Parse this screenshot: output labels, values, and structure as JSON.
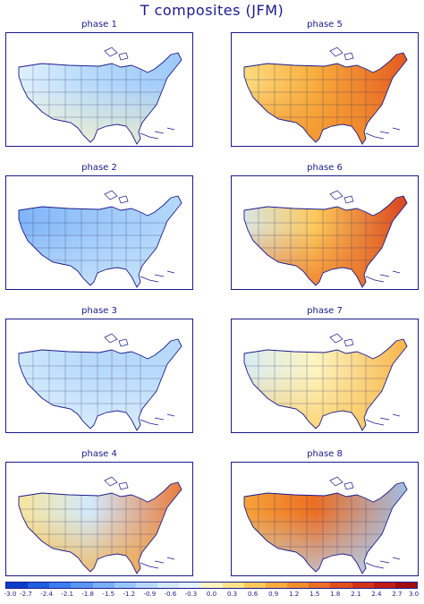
{
  "title": "T composites (JFM)",
  "panels": [
    {
      "label": "phase 1",
      "pattern": "cool-north-neutral-south"
    },
    {
      "label": "phase 5",
      "pattern": "warm-east"
    },
    {
      "label": "phase 2",
      "pattern": "cool-west"
    },
    {
      "label": "phase 6",
      "pattern": "strong-warm-east"
    },
    {
      "label": "phase 3",
      "pattern": "cool-widespread"
    },
    {
      "label": "phase 7",
      "pattern": "warm-east-cool-northwest"
    },
    {
      "label": "phase 4",
      "pattern": "warm-east-cool-north-plains"
    },
    {
      "label": "phase 8",
      "pattern": "warm-north-plains-cool-east"
    }
  ],
  "colorbar": {
    "ticks": [
      "-3.0",
      "-2.7",
      "-2.4",
      "-2.1",
      "-1.8",
      "-1.5",
      "-1.2",
      "-0.9",
      "-0.6",
      "-0.3",
      "0.0",
      "0.3",
      "0.6",
      "0.9",
      "1.2",
      "1.5",
      "1.8",
      "2.1",
      "2.4",
      "2.7",
      "3.0"
    ],
    "colors": [
      "#0a3fc9",
      "#1f5fe0",
      "#3b7ff0",
      "#5b97f4",
      "#7bb1f7",
      "#9ac7f9",
      "#b7dafb",
      "#d2eafc",
      "#e6f4fd",
      "#fdf5c0",
      "#fde48a",
      "#fcc95a",
      "#f8ad3c",
      "#f28e2c",
      "#ec6e24",
      "#e2501c",
      "#d43416",
      "#c21d12",
      "#a40d0e"
    ]
  }
}
